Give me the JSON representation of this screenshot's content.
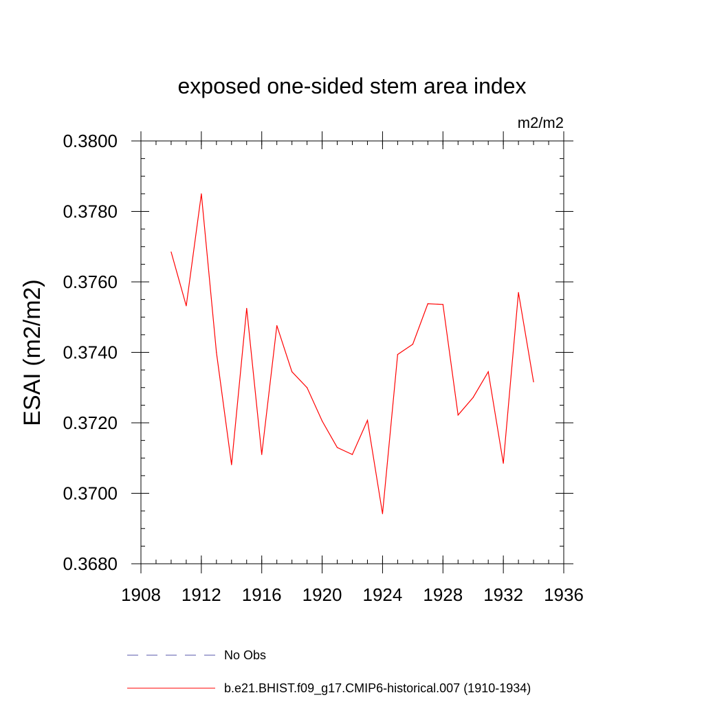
{
  "chart_data": {
    "type": "line",
    "title": "exposed one-sided stem area index",
    "units": "m2/m2",
    "ylabel": "ESAI  (m2/m2)",
    "xlabel": "",
    "xlim": [
      1908,
      1936
    ],
    "ylim": [
      0.368,
      0.38
    ],
    "x_ticks": [
      1908,
      1912,
      1916,
      1920,
      1924,
      1928,
      1932,
      1936
    ],
    "x_tick_labels": [
      "1908",
      "1912",
      "1916",
      "1920",
      "1924",
      "1928",
      "1932",
      "1936"
    ],
    "y_ticks": [
      0.368,
      0.37,
      0.372,
      0.374,
      0.376,
      0.378,
      0.38
    ],
    "y_tick_labels": [
      "0.3680",
      "0.3700",
      "0.3720",
      "0.3740",
      "0.3760",
      "0.3780",
      "0.3800"
    ],
    "x_minor_step": 1,
    "y_minor_step": 0.0005,
    "grid": false,
    "series": [
      {
        "name": "b.e21.BHIST.f09_g17.CMIP6-historical.007 (1910-1934)",
        "color": "#ff0000",
        "style": "solid",
        "x": [
          1910,
          1911,
          1912,
          1913,
          1914,
          1915,
          1916,
          1917,
          1918,
          1919,
          1920,
          1921,
          1922,
          1923,
          1924,
          1925,
          1926,
          1927,
          1928,
          1929,
          1930,
          1931,
          1932,
          1933,
          1934
        ],
        "values": [
          0.37685,
          0.37532,
          0.3785,
          0.374,
          0.37081,
          0.37525,
          0.3711,
          0.37476,
          0.37345,
          0.373,
          0.37205,
          0.3713,
          0.3711,
          0.37207,
          0.36942,
          0.37394,
          0.37423,
          0.37538,
          0.37536,
          0.37222,
          0.37272,
          0.37345,
          0.37085,
          0.3757,
          0.37316
        ]
      }
    ],
    "legend": [
      {
        "label": "No Obs",
        "color": "#5555aa",
        "style": "dashed"
      },
      {
        "label": "b.e21.BHIST.f09_g17.CMIP6-historical.007 (1910-1934)",
        "color": "#ff0000",
        "style": "solid"
      }
    ]
  }
}
